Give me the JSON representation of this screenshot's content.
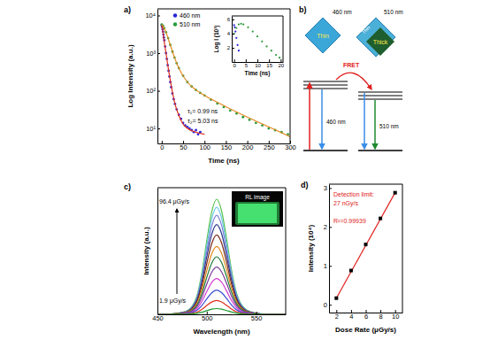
{
  "chart_data": [
    {
      "type": "scatter",
      "xlabel": "Time (ns)",
      "ylabel": "Log Intensity (a.u.)",
      "log": "y",
      "xlim": [
        -10,
        300
      ],
      "ylim": [
        4,
        15000
      ],
      "xticks": [
        0,
        50,
        100,
        150,
        200,
        250,
        300
      ],
      "yticks": [
        {
          "value": 10,
          "label": "10¹"
        },
        {
          "value": 100,
          "label": "10²"
        },
        {
          "value": 1000,
          "label": "10³"
        },
        {
          "value": 10000,
          "label": "10⁴"
        }
      ],
      "legend": "upper left",
      "annotations": [
        "τ₁= 0.99 ns",
        "τ₂= 5.03 ns"
      ],
      "series": [
        {
          "name": "460 nm",
          "type": "scatter",
          "marker": "circle",
          "color": "#2424d6",
          "x": [
            0,
            1,
            2,
            3,
            4,
            5,
            6,
            8,
            10,
            12,
            14,
            16,
            18,
            20,
            22,
            25,
            28,
            31,
            35,
            40,
            45,
            50,
            55,
            60,
            65,
            70,
            75,
            80,
            85,
            90
          ],
          "values": [
            5500,
            5000,
            4300,
            3700,
            3100,
            2600,
            2200,
            1500,
            1000,
            700,
            480,
            340,
            240,
            170,
            125,
            85,
            60,
            45,
            32,
            23,
            18,
            14,
            12,
            11,
            10,
            9,
            8,
            9,
            7,
            8
          ]
        },
        {
          "name": "510 nm",
          "type": "scatter",
          "marker": "circle",
          "color": "#2a9a3a",
          "x": [
            0,
            3,
            6,
            10,
            15,
            20,
            25,
            30,
            35,
            40,
            50,
            60,
            70,
            80,
            90,
            100,
            115,
            130,
            145,
            160,
            175,
            190,
            205,
            220,
            235,
            250,
            265,
            280,
            295
          ],
          "values": [
            5800,
            5300,
            4600,
            3600,
            2500,
            1650,
            1100,
            760,
            540,
            400,
            250,
            170,
            130,
            105,
            88,
            75,
            58,
            46,
            37,
            30,
            25,
            20,
            17,
            14,
            12,
            10,
            9,
            8,
            7
          ]
        },
        {
          "type": "line",
          "line_style": "solid",
          "color": "#e03020",
          "x": [
            0,
            2,
            5,
            10,
            15,
            20,
            30,
            40,
            50,
            60,
            80,
            100
          ],
          "values": [
            5500,
            4300,
            2400,
            1000,
            420,
            190,
            50,
            22,
            13,
            10,
            8,
            7
          ]
        },
        {
          "type": "line",
          "line_style": "solid",
          "color": "#e08a20",
          "x": [
            0,
            5,
            10,
            20,
            30,
            40,
            60,
            80,
            100,
            150,
            200,
            250,
            300
          ],
          "values": [
            5800,
            4800,
            3600,
            1650,
            760,
            400,
            170,
            105,
            75,
            38,
            20,
            11,
            6
          ]
        }
      ]
    },
    {
      "type": "scatter",
      "xlabel": "Time (ns)",
      "ylabel": "Log I (10³)",
      "xlim": [
        -1,
        21
      ],
      "ylim": [
        0,
        6.5
      ],
      "xticks": [
        0,
        5,
        10,
        15,
        20
      ],
      "yticks": [
        2,
        4,
        6
      ],
      "series": [
        {
          "type": "scatter",
          "marker": "circle",
          "color": "#2424d6",
          "x": [
            0,
            0.3,
            0.6,
            1,
            1.5,
            2
          ],
          "values": [
            5.2,
            4.9,
            4.3,
            3.4,
            2.4,
            1.6
          ]
        },
        {
          "type": "scatter",
          "marker": "circle",
          "color": "#2a9a3a",
          "x": [
            0,
            1,
            2,
            3,
            4,
            6,
            8,
            10,
            12,
            14,
            16,
            18,
            19.5
          ],
          "values": [
            4.0,
            4.8,
            5.3,
            5.4,
            5.3,
            4.9,
            4.3,
            3.6,
            2.9,
            2.2,
            1.6,
            1.0,
            0.6
          ]
        }
      ]
    },
    {
      "type": "line",
      "xlabel": "Wavelength (nm)",
      "ylabel": "Intensity (a.u.)",
      "xlim": [
        450,
        580
      ],
      "ylim": [
        0,
        110
      ],
      "xticks": [
        450,
        500,
        550
      ],
      "tick_labels": "x",
      "annotations": [
        "96.4 μGy/s",
        "1.9 μGy/s",
        "RL image"
      ],
      "x": [
        450,
        460,
        470,
        480,
        490,
        495,
        500,
        505,
        510,
        515,
        520,
        525,
        530,
        540,
        550,
        560,
        570,
        580
      ],
      "series": [
        {
          "color": "#56c04a",
          "values": [
            0,
            0,
            1,
            3,
            16,
            36,
            64,
            89,
            100,
            90,
            66,
            39,
            19,
            4,
            1,
            0,
            0,
            0
          ]
        },
        {
          "color": "#6bc7e8",
          "values": [
            0,
            0,
            0.9,
            2.8,
            14.9,
            33.5,
            59.5,
            82.8,
            93,
            83.7,
            61.4,
            36.3,
            17.7,
            3.7,
            0.9,
            0,
            0,
            0
          ]
        },
        {
          "color": "#7b7fd6",
          "values": [
            0,
            0,
            0.9,
            2.6,
            13.8,
            31,
            55,
            76.5,
            86,
            77.4,
            56.8,
            33.5,
            16.3,
            3.4,
            0.9,
            0,
            0,
            0
          ]
        },
        {
          "color": "#2b3a8f",
          "values": [
            0,
            0,
            0.8,
            2.3,
            12.5,
            28.1,
            49.9,
            69.4,
            78,
            70.2,
            51.5,
            30.4,
            14.8,
            3.1,
            0.8,
            0,
            0,
            0
          ]
        },
        {
          "color": "#7a2a1a",
          "values": [
            0,
            0,
            0.7,
            2.1,
            11,
            24.8,
            44.2,
            61.4,
            69,
            62.1,
            45.5,
            26.9,
            13.1,
            2.8,
            0.7,
            0,
            0,
            0
          ]
        },
        {
          "color": "#e08a1e",
          "values": [
            0,
            0,
            0.6,
            1.8,
            9.4,
            21.2,
            37.8,
            52.5,
            59,
            53.1,
            38.9,
            23,
            11.2,
            2.4,
            0.6,
            0,
            0,
            0
          ]
        },
        {
          "color": "#1e7a3a",
          "values": [
            0,
            0,
            0.5,
            1.5,
            8,
            18,
            32,
            44.5,
            50,
            45,
            33,
            19.5,
            9.5,
            2,
            0.5,
            0,
            0,
            0
          ]
        },
        {
          "color": "#7a3a9a",
          "values": [
            0,
            0,
            0.4,
            1.2,
            6.6,
            14.8,
            26.2,
            36.5,
            41,
            36.9,
            27.1,
            16,
            7.8,
            1.6,
            0.4,
            0,
            0,
            0
          ]
        },
        {
          "color": "#d23ad2",
          "values": [
            0,
            0,
            0.3,
            0.9,
            5,
            11.2,
            19.8,
            27.6,
            31,
            27.9,
            20.5,
            12.1,
            5.9,
            1.2,
            0.3,
            0,
            0,
            0
          ]
        },
        {
          "color": "#3a4ad2",
          "values": [
            0,
            0,
            0.2,
            0.6,
            3.4,
            7.6,
            13.4,
            18.7,
            21,
            18.9,
            13.9,
            8.2,
            4,
            0.8,
            0.2,
            0,
            0,
            0
          ]
        },
        {
          "color": "#e0301e",
          "values": [
            0,
            0,
            0.1,
            0.4,
            1.9,
            4.3,
            7.7,
            10.7,
            12,
            10.8,
            7.9,
            4.7,
            2.3,
            0.5,
            0.1,
            0,
            0,
            0
          ]
        },
        {
          "color": "#1a9a30",
          "values": [
            0,
            0,
            0.1,
            0.2,
            0.8,
            1.8,
            3.2,
            4.5,
            5,
            4.5,
            3.3,
            2,
            1,
            0.2,
            0.1,
            0,
            0,
            0
          ]
        }
      ]
    },
    {
      "type": "scatter",
      "xlabel": "Dose Rate (μGy/s)",
      "ylabel": "Intensity (10⁴)",
      "xlim": [
        1,
        11
      ],
      "ylim": [
        -0.2,
        3.1
      ],
      "xticks": [
        2,
        4,
        6,
        8,
        10
      ],
      "yticks": [
        0,
        1,
        2,
        3
      ],
      "annotations": [
        "Detection limit:",
        "27 nGy/s",
        "R²=0.99939"
      ],
      "series": [
        {
          "type": "line",
          "line_style": "solid",
          "color": "#e02020",
          "x": [
            2,
            10
          ],
          "values": [
            0.17,
            2.88
          ]
        },
        {
          "type": "scatter",
          "marker": "square",
          "color": "#000000",
          "x": [
            2,
            4,
            6,
            8,
            10
          ],
          "values": [
            0.17,
            0.88,
            1.55,
            2.22,
            2.88
          ]
        }
      ]
    }
  ],
  "panel_labels": [
    "a)",
    "b)",
    "c)",
    "d)"
  ],
  "diagram": {
    "crystals": [
      {
        "texts": [
          "Thin"
        ],
        "emission": "460 nm"
      },
      {
        "texts": [
          "Thin",
          "Thick"
        ],
        "emission": "510 nm"
      }
    ],
    "transfer": "FRET",
    "transitions": [
      "460 nm",
      "510 nm"
    ]
  }
}
